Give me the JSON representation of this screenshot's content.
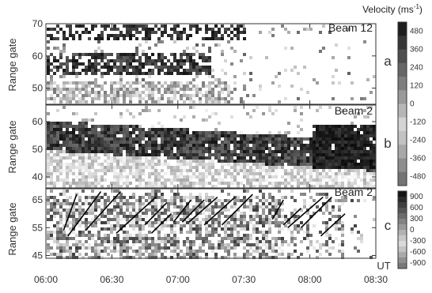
{
  "chart_data": {
    "type": "heatmap",
    "x_axis": {
      "range": [
        "06:00",
        "08:30"
      ],
      "tick_labels": [
        "06:00",
        "06:30",
        "07:00",
        "07:30",
        "08:00",
        "08:30"
      ],
      "unit_label": "UT"
    },
    "panels": [
      {
        "id": "a",
        "beam_label": "Beam 12",
        "ylabel": "Range gate",
        "ylim": [
          45,
          70
        ],
        "yticks": [
          "50",
          "60",
          "70"
        ],
        "colorbar": "velocity"
      },
      {
        "id": "b",
        "beam_label": "Beam 2",
        "ylabel": "Range gate",
        "ylim": [
          36,
          66
        ],
        "yticks": [
          "40",
          "50",
          "60"
        ],
        "colorbar": "velocity"
      },
      {
        "id": "c",
        "beam_label": "Beam 2",
        "ylabel": "Range gate",
        "ylim": [
          44,
          69
        ],
        "yticks": [
          "45",
          "55",
          "65"
        ],
        "colorbar": "second",
        "overlay_lines": [
          {
            "t": [
              "06:08",
              "06:14"
            ],
            "g": [
              54,
              67
            ]
          },
          {
            "t": [
              "06:10",
              "06:25"
            ],
            "g": [
              52,
              68
            ]
          },
          {
            "t": [
              "06:18",
              "06:34"
            ],
            "g": [
              54,
              68
            ]
          },
          {
            "t": [
              "06:32",
              "06:50"
            ],
            "g": [
              53,
              66
            ]
          },
          {
            "t": [
              "06:45",
              "06:55"
            ],
            "g": [
              56,
              64
            ]
          },
          {
            "t": [
              "06:48",
              "06:57"
            ],
            "g": [
              53,
              60
            ]
          },
          {
            "t": [
              "06:58",
              "07:06"
            ],
            "g": [
              57,
              65
            ]
          },
          {
            "t": [
              "07:02",
              "07:12"
            ],
            "g": [
              57,
              65
            ]
          },
          {
            "t": [
              "07:05",
              "07:18"
            ],
            "g": [
              57,
              66
            ]
          },
          {
            "t": [
              "07:12",
              "07:26"
            ],
            "g": [
              56,
              66
            ]
          },
          {
            "t": [
              "07:20",
              "07:34"
            ],
            "g": [
              56,
              67
            ]
          },
          {
            "t": [
              "07:43",
              "07:48"
            ],
            "g": [
              58,
              65
            ]
          },
          {
            "t": [
              "07:48",
              "07:56"
            ],
            "g": [
              56,
              62
            ]
          },
          {
            "t": [
              "07:50",
              "08:06"
            ],
            "g": [
              55,
              66
            ]
          },
          {
            "t": [
              "07:56",
              "08:10"
            ],
            "g": [
              55,
              66
            ]
          },
          {
            "t": [
              "08:05",
              "08:16"
            ],
            "g": [
              52,
              60
            ]
          }
        ]
      }
    ],
    "colorbars": [
      {
        "id": "velocity",
        "title": "Velocity (ms",
        "title_superscript": "-1",
        "title_close": ")",
        "labels": [
          "480",
          "360",
          "240",
          "120",
          "0",
          "-120",
          "-240",
          "-360",
          "-480"
        ],
        "colors": [
          "#1e1e1e",
          "#363636",
          "#4e4e4e",
          "#666666",
          "#7e7e7e",
          "#9a9a9a",
          "#b6b6b6",
          "#d4d4d4",
          "#c2c2c2",
          "#a8a8a8",
          "#8e8e8e",
          "#747474"
        ]
      },
      {
        "id": "second",
        "title": "",
        "labels": [
          "900",
          "600",
          "300",
          "0",
          "-300",
          "-600",
          "-900"
        ],
        "colors": [
          "#141414",
          "#2a2a2a",
          "#404040",
          "#565656",
          "#6c6c6c",
          "#838383",
          "#9a9a9a",
          "#b2b2b2",
          "#c8c8c8",
          "#dadada",
          "#c4c4c4",
          "#aaaaaa",
          "#909090",
          "#787878"
        ]
      }
    ],
    "grid": false
  }
}
